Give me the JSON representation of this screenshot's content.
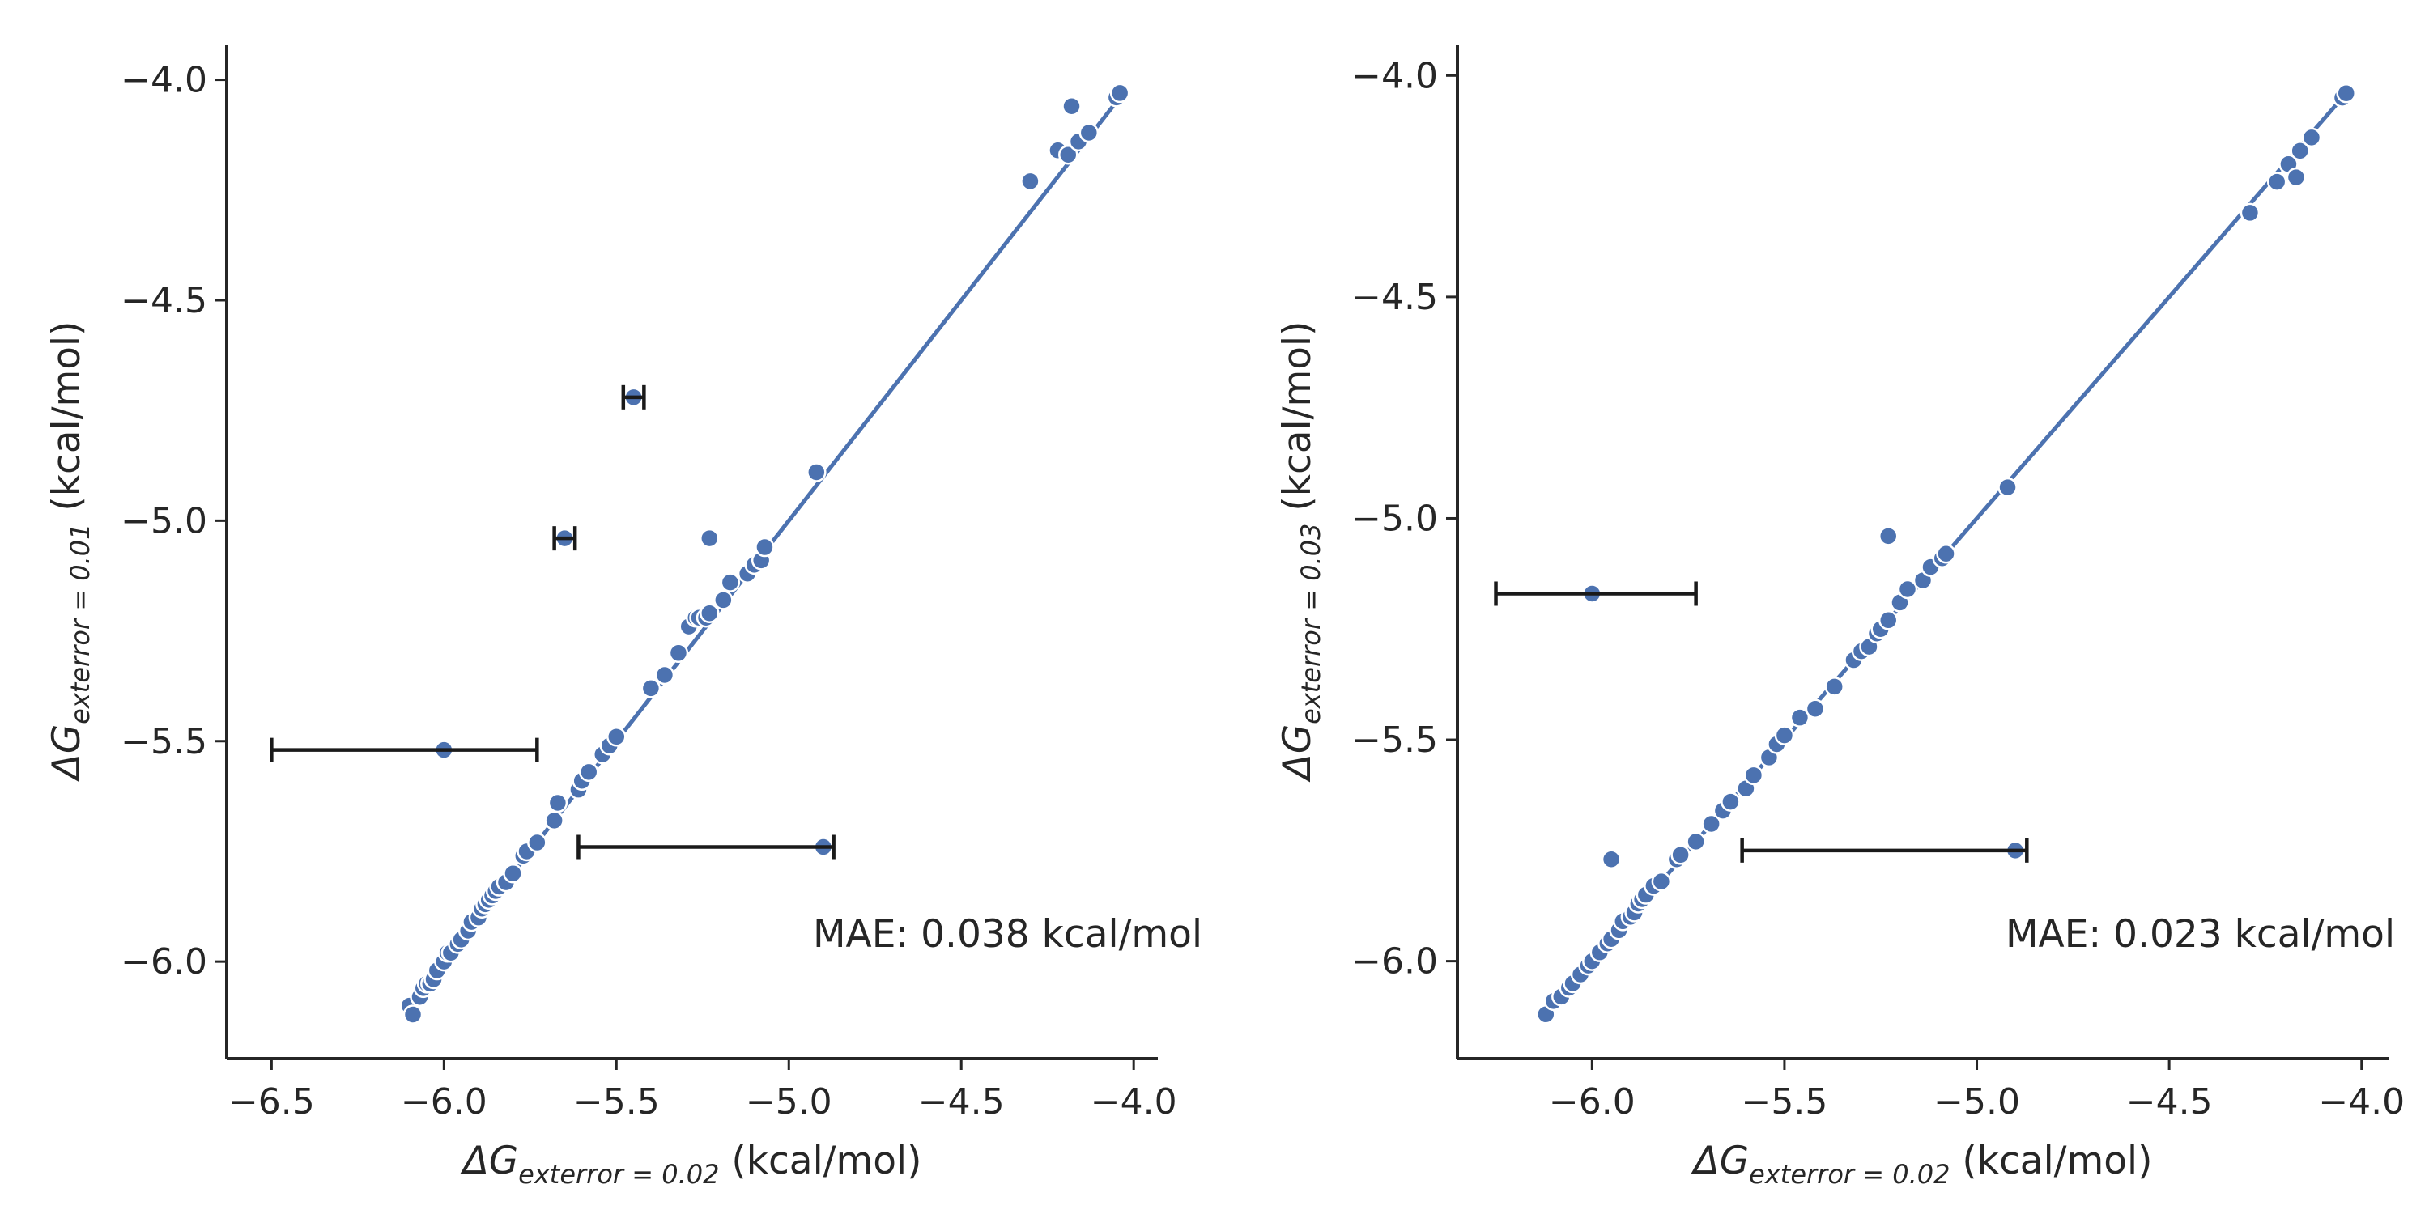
{
  "chart_data": [
    {
      "type": "scatter",
      "xlabel": {
        "prefix": "ΔG",
        "sub": "exterror = 0.02",
        "suffix": " (kcal/mol)"
      },
      "ylabel": {
        "prefix": "ΔG",
        "sub": "exterror = 0.01",
        "suffix": " (kcal/mol)"
      },
      "xlim": [
        -6.63,
        -3.93
      ],
      "ylim": [
        -6.22,
        -3.92
      ],
      "xticks": [
        -6.5,
        -6.0,
        -5.5,
        -5.0,
        -4.5,
        -4.0
      ],
      "xtick_labels": [
        "−6.5",
        "−6.0",
        "−5.5",
        "−5.0",
        "−4.5",
        "−4.0"
      ],
      "yticks": [
        -6.0,
        -5.5,
        -5.0,
        -4.5,
        -4.0
      ],
      "ytick_labels": [
        "−6.0",
        "−5.5",
        "−5.0",
        "−4.5",
        "−4.0"
      ],
      "fit_line": [
        [
          -6.1,
          -6.1
        ],
        [
          -4.03,
          -4.03
        ]
      ],
      "annotation": "MAE: 0.038 kcal/mol",
      "grid": false,
      "points": [
        [
          -6.1,
          -6.1
        ],
        [
          -6.09,
          -6.12
        ],
        [
          -6.07,
          -6.08
        ],
        [
          -6.06,
          -6.06
        ],
        [
          -6.05,
          -6.05
        ],
        [
          -6.04,
          -6.05
        ],
        [
          -6.03,
          -6.04
        ],
        [
          -6.02,
          -6.02
        ],
        [
          -6.0,
          -6.0
        ],
        [
          -5.99,
          -5.98
        ],
        [
          -5.98,
          -5.98
        ],
        [
          -5.96,
          -5.96
        ],
        [
          -5.95,
          -5.95
        ],
        [
          -5.93,
          -5.93
        ],
        [
          -5.92,
          -5.91
        ],
        [
          -5.9,
          -5.9
        ],
        [
          -5.89,
          -5.88
        ],
        [
          -5.88,
          -5.87
        ],
        [
          -5.87,
          -5.86
        ],
        [
          -5.86,
          -5.85
        ],
        [
          -5.85,
          -5.84
        ],
        [
          -5.84,
          -5.83
        ],
        [
          -5.82,
          -5.82
        ],
        [
          -5.8,
          -5.8
        ],
        [
          -5.77,
          -5.76
        ],
        [
          -5.76,
          -5.75
        ],
        [
          -5.73,
          -5.73
        ],
        [
          -5.68,
          -5.68
        ],
        [
          -5.67,
          -5.64
        ],
        [
          -5.61,
          -5.61
        ],
        [
          -5.6,
          -5.59
        ],
        [
          -5.58,
          -5.57
        ],
        [
          -5.54,
          -5.53
        ],
        [
          -5.52,
          -5.51
        ],
        [
          -5.5,
          -5.49
        ],
        [
          -5.4,
          -5.38
        ],
        [
          -5.36,
          -5.35
        ],
        [
          -5.32,
          -5.3
        ],
        [
          -5.29,
          -5.24
        ],
        [
          -5.27,
          -5.22
        ],
        [
          -5.26,
          -5.22
        ],
        [
          -5.24,
          -5.22
        ],
        [
          -5.23,
          -5.21
        ],
        [
          -5.19,
          -5.18
        ],
        [
          -5.17,
          -5.14
        ],
        [
          -5.12,
          -5.12
        ],
        [
          -5.1,
          -5.1
        ],
        [
          -5.08,
          -5.09
        ],
        [
          -5.07,
          -5.06
        ],
        [
          -5.23,
          -5.04
        ],
        [
          -4.92,
          -4.89
        ],
        [
          -4.3,
          -4.23
        ],
        [
          -4.22,
          -4.16
        ],
        [
          -4.19,
          -4.17
        ],
        [
          -4.16,
          -4.14
        ],
        [
          -4.13,
          -4.12
        ],
        [
          -4.18,
          -4.06
        ],
        [
          -4.05,
          -4.04
        ],
        [
          -4.04,
          -4.03
        ],
        [
          -5.65,
          -5.04
        ],
        [
          -5.45,
          -4.72
        ],
        [
          -6.0,
          -5.52
        ],
        [
          -4.9,
          -5.74
        ]
      ],
      "error_bars": [
        {
          "y": -5.04,
          "xmin": -5.68,
          "xmax": -5.62
        },
        {
          "y": -4.72,
          "xmin": -5.48,
          "xmax": -5.42
        },
        {
          "y": -5.52,
          "xmin": -6.5,
          "xmax": -5.73
        },
        {
          "y": -5.74,
          "xmin": -5.61,
          "xmax": -4.87
        }
      ]
    },
    {
      "type": "scatter",
      "xlabel": {
        "prefix": "ΔG",
        "sub": "exterror = 0.02",
        "suffix": " (kcal/mol)"
      },
      "ylabel": {
        "prefix": "ΔG",
        "sub": "exterror = 0.03",
        "suffix": " (kcal/mol)"
      },
      "xlim": [
        -6.35,
        -3.93
      ],
      "ylim": [
        -6.22,
        -3.93
      ],
      "xticks": [
        -6.0,
        -5.5,
        -5.0,
        -4.5,
        -4.0
      ],
      "xtick_labels": [
        "−6.0",
        "−5.5",
        "−5.0",
        "−4.5",
        "−4.0"
      ],
      "yticks": [
        -6.0,
        -5.5,
        -5.0,
        -4.5,
        -4.0
      ],
      "ytick_labels": [
        "−6.0",
        "−5.5",
        "−5.0",
        "−4.5",
        "−4.0"
      ],
      "fit_line": [
        [
          -6.12,
          -6.12
        ],
        [
          -4.03,
          -4.03
        ]
      ],
      "annotation": "MAE: 0.023 kcal/mol",
      "grid": false,
      "points": [
        [
          -6.12,
          -6.12
        ],
        [
          -6.1,
          -6.09
        ],
        [
          -6.08,
          -6.08
        ],
        [
          -6.06,
          -6.06
        ],
        [
          -6.05,
          -6.05
        ],
        [
          -6.03,
          -6.03
        ],
        [
          -6.01,
          -6.01
        ],
        [
          -6.0,
          -6.0
        ],
        [
          -5.98,
          -5.98
        ],
        [
          -5.96,
          -5.96
        ],
        [
          -5.95,
          -5.95
        ],
        [
          -5.93,
          -5.93
        ],
        [
          -5.92,
          -5.91
        ],
        [
          -5.9,
          -5.9
        ],
        [
          -5.89,
          -5.89
        ],
        [
          -5.88,
          -5.87
        ],
        [
          -5.87,
          -5.86
        ],
        [
          -5.86,
          -5.85
        ],
        [
          -5.84,
          -5.83
        ],
        [
          -5.82,
          -5.82
        ],
        [
          -5.78,
          -5.77
        ],
        [
          -5.77,
          -5.76
        ],
        [
          -5.73,
          -5.73
        ],
        [
          -5.69,
          -5.69
        ],
        [
          -5.66,
          -5.66
        ],
        [
          -5.64,
          -5.64
        ],
        [
          -5.6,
          -5.61
        ],
        [
          -5.58,
          -5.58
        ],
        [
          -5.54,
          -5.54
        ],
        [
          -5.52,
          -5.51
        ],
        [
          -5.5,
          -5.49
        ],
        [
          -5.46,
          -5.45
        ],
        [
          -5.42,
          -5.43
        ],
        [
          -5.37,
          -5.38
        ],
        [
          -5.32,
          -5.32
        ],
        [
          -5.3,
          -5.3
        ],
        [
          -5.28,
          -5.29
        ],
        [
          -5.26,
          -5.26
        ],
        [
          -5.25,
          -5.25
        ],
        [
          -5.23,
          -5.23
        ],
        [
          -5.2,
          -5.19
        ],
        [
          -5.18,
          -5.16
        ],
        [
          -5.14,
          -5.14
        ],
        [
          -5.12,
          -5.11
        ],
        [
          -5.09,
          -5.09
        ],
        [
          -5.08,
          -5.08
        ],
        [
          -5.23,
          -5.04
        ],
        [
          -4.92,
          -4.93
        ],
        [
          -4.29,
          -4.31
        ],
        [
          -4.22,
          -4.24
        ],
        [
          -4.19,
          -4.2
        ],
        [
          -4.17,
          -4.23
        ],
        [
          -4.16,
          -4.17
        ],
        [
          -4.13,
          -4.14
        ],
        [
          -4.05,
          -4.05
        ],
        [
          -4.04,
          -4.04
        ],
        [
          -5.95,
          -5.77
        ],
        [
          -6.0,
          -5.17
        ],
        [
          -4.9,
          -5.75
        ]
      ],
      "error_bars": [
        {
          "y": -5.17,
          "xmin": -6.25,
          "xmax": -5.73
        },
        {
          "y": -5.75,
          "xmin": -5.61,
          "xmax": -4.87
        }
      ]
    }
  ]
}
